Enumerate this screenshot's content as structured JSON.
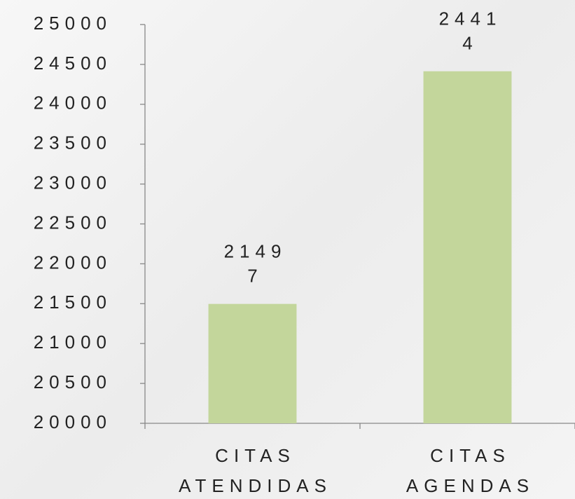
{
  "chart_data": {
    "type": "bar",
    "categories": [
      "CITAS ATENDIDAS",
      "CITAS AGENDAS"
    ],
    "values": [
      21497,
      24414
    ],
    "color": "#c3d69b",
    "ylim": [
      20000,
      25000
    ],
    "yticks": [
      20000,
      20500,
      21000,
      21500,
      22000,
      22500,
      23000,
      23500,
      24000,
      24500,
      25000
    ]
  }
}
